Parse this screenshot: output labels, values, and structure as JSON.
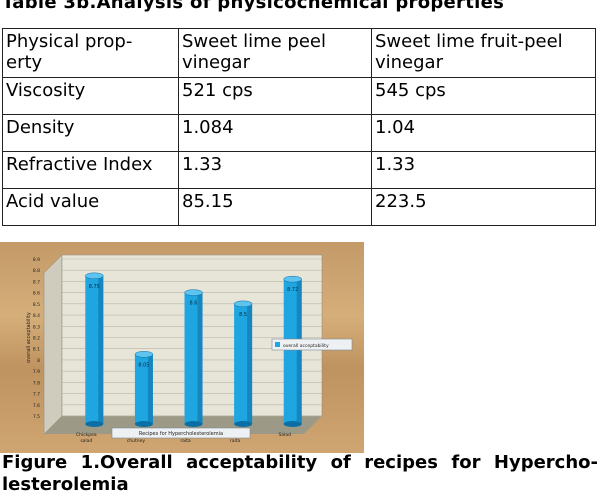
{
  "table": {
    "title": "Table 3b.Analysis of physicochemical properties",
    "header": {
      "line1": [
        "Physical prop-",
        "Sweet lime peel",
        "Sweet lime fruit-peel"
      ],
      "line2": [
        "erty",
        "vinegar",
        "vinegar"
      ]
    },
    "rows": [
      [
        "Viscosity",
        "521 cps",
        "545 cps"
      ],
      [
        "Density",
        "1.084",
        "1.04"
      ],
      [
        "Refractive Index",
        "1.33",
        "1.33"
      ],
      [
        "Acid value",
        "85.15",
        "223.5"
      ]
    ]
  },
  "chart_data": {
    "type": "bar",
    "categories": [
      "Chickpea salad",
      "Fruit garlic chutney",
      "Beetroot raita",
      "Corn raita",
      "Salad"
    ],
    "values": [
      8.75,
      8.05,
      8.6,
      8.5,
      8.72
    ],
    "data_labels": [
      "8.75",
      "8.05",
      "8.6",
      "8.5",
      "8.72"
    ],
    "legend": "overall acceptability",
    "xlabel": "Recipes for Hypercholesterolemia",
    "ylabel": "overall acceptability",
    "ylim": [
      7.5,
      8.9
    ],
    "yticks": [
      "8.9",
      "8.8",
      "8.7",
      "8.6",
      "8.5",
      "8.4",
      "8.3",
      "8.2",
      "8.1",
      "8",
      "7.9",
      "7.8",
      "7.7",
      "7.6",
      "7.5"
    ],
    "legend_position": "right",
    "colors": {
      "bar": "#1fa5e0",
      "bar_dark": "#0b6fa6",
      "wall": "#e7e4d8",
      "floor": "#9c9a86"
    }
  },
  "caption": {
    "line1": "Figure 1.Overall acceptability of recipes for Hyperchо-",
    "line2": "lesterolemia"
  }
}
